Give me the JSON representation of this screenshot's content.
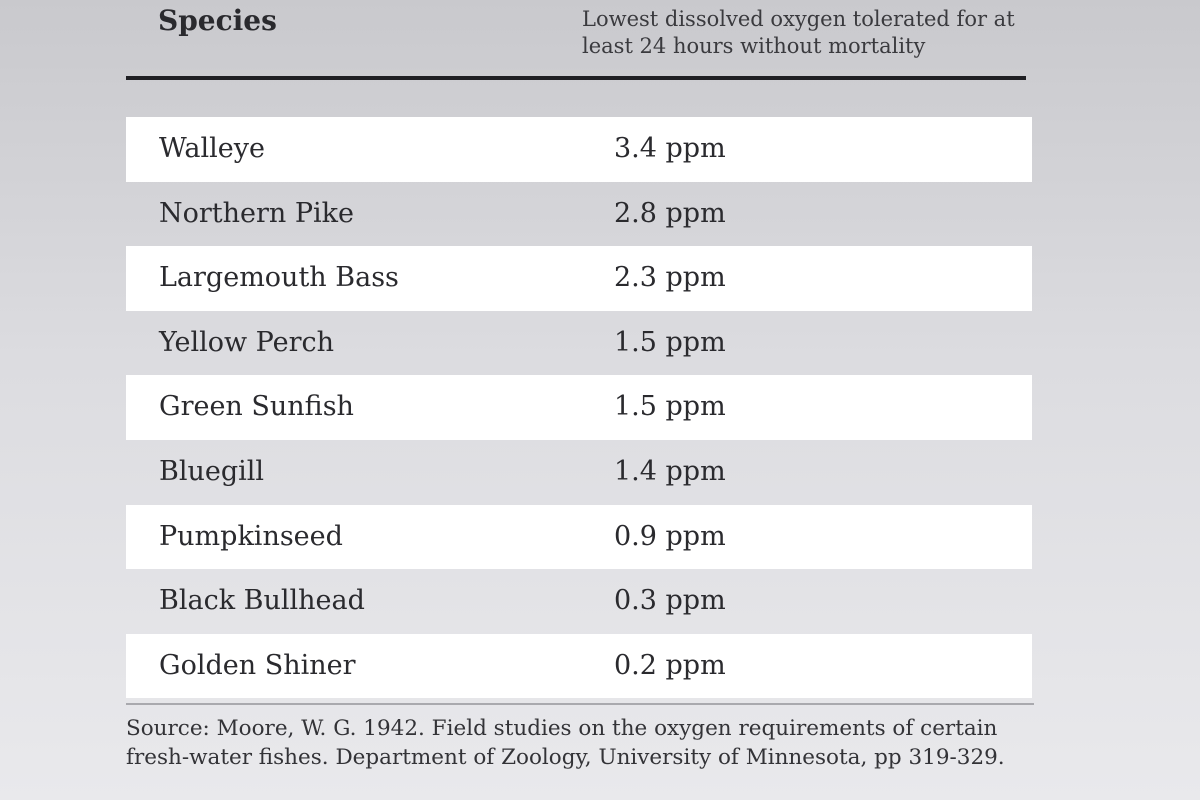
{
  "header": {
    "species_label": "Species",
    "oxygen_label": "Lowest dissolved oxygen tolerated for at least 24 hours without mortality"
  },
  "rows": [
    {
      "species": "Walleye",
      "value": "3.4 ppm"
    },
    {
      "species": "Northern Pike",
      "value": "2.8 ppm"
    },
    {
      "species": "Largemouth Bass",
      "value": "2.3 ppm"
    },
    {
      "species": "Yellow Perch",
      "value": "1.5 ppm"
    },
    {
      "species": "Green Sunfish",
      "value": "1.5 ppm"
    },
    {
      "species": "Bluegill",
      "value": "1.4 ppm"
    },
    {
      "species": "Pumpkinseed",
      "value": "0.9 ppm"
    },
    {
      "species": "Black Bullhead",
      "value": "0.3 ppm"
    },
    {
      "species": "Golden Shiner",
      "value": "0.2 ppm"
    }
  ],
  "source": {
    "text": "Source:  Moore, W. G. 1942. Field studies on the oxygen requirements of certain fresh-water fishes. Department of Zoology, University of Minnesota, pp 319-329."
  },
  "colors": {
    "light_row": "#ffffff",
    "text": "#2a2a2e",
    "rule": "#1f1f23"
  }
}
